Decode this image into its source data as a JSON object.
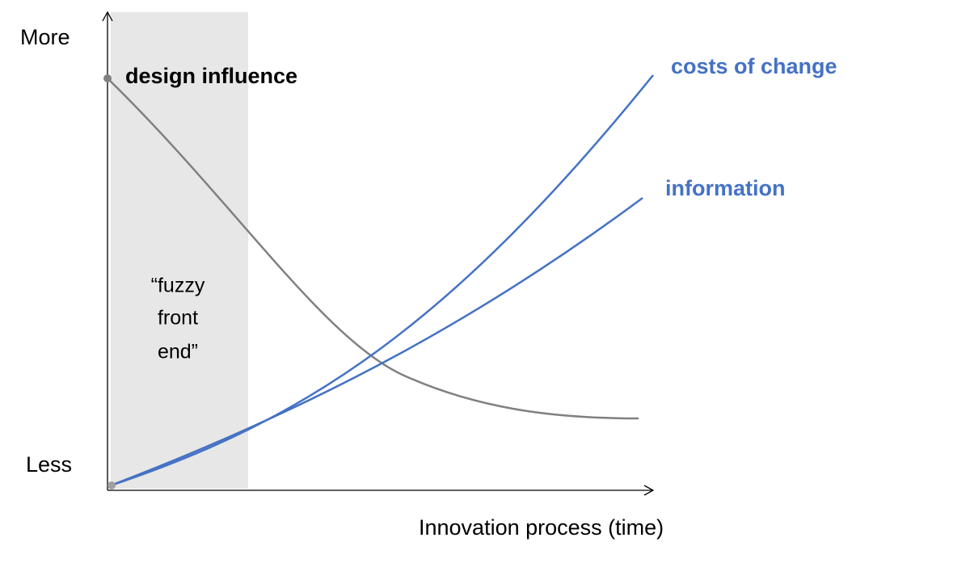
{
  "axes": {
    "y_top": "More",
    "y_bottom": "Less",
    "x_label": "Innovation process (time)"
  },
  "region": {
    "lines": [
      "“fuzzy",
      "front",
      "end”"
    ]
  },
  "curves": {
    "design_influence": "design influence",
    "costs_of_change": "costs of change",
    "information": "information"
  }
}
